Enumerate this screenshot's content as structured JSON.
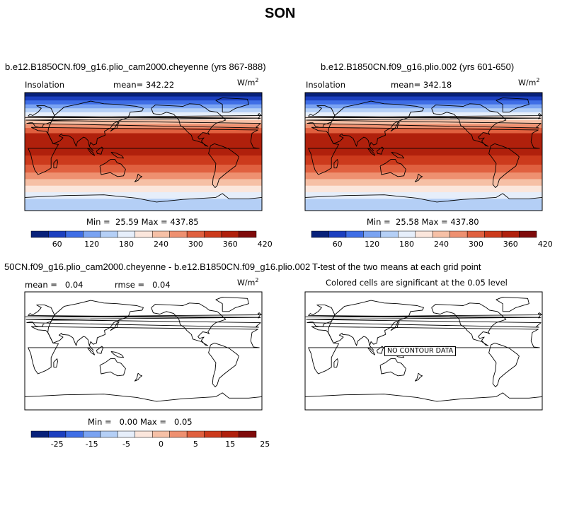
{
  "figure_title": "SON",
  "panels": [
    {
      "id": "top-left",
      "title": "b.e12.B1850CN.f09_g16.plio_cam2000.cheyenne (yrs 867-888)",
      "left_label": "Insolation",
      "stat_label": "mean=",
      "stat_value": "342.22",
      "unit_base": "W/m",
      "unit_sup": "2",
      "min_label": "Min =",
      "min_value": "25.59",
      "max_label": "Max =",
      "max_value": "437.85",
      "colorbar_ticks": [
        "60",
        "120",
        "180",
        "240",
        "300",
        "360",
        "420"
      ]
    },
    {
      "id": "top-right",
      "title": "b.e12.B1850CN.f09_g16.plio.002 (yrs 601-650)",
      "left_label": "Insolation",
      "stat_label": "mean=",
      "stat_value": "342.18",
      "unit_base": "W/m",
      "unit_sup": "2",
      "min_label": "Min =",
      "min_value": "25.58",
      "max_label": "Max =",
      "max_value": "437.80",
      "colorbar_ticks": [
        "60",
        "120",
        "180",
        "240",
        "300",
        "360",
        "420"
      ]
    },
    {
      "id": "bottom-left",
      "title": "50CN.f09_g16.plio_cam2000.cheyenne - b.e12.B1850CN.f09_g16.plio.002",
      "mean_label": "mean =",
      "mean_value": "0.04",
      "rmse_label": "rmse =",
      "rmse_value": "0.04",
      "unit_base": "W/m",
      "unit_sup": "2",
      "min_label": "Min =",
      "min_value": "0.00",
      "max_label": "Max =",
      "max_value": "0.05",
      "colorbar_ticks": [
        "-25",
        "-15",
        "-5",
        "0",
        "5",
        "15",
        "25"
      ]
    },
    {
      "id": "bottom-right",
      "title": "T-test of the two means at each grid point",
      "subtitle": "Colored cells are significant at the 0.05 level",
      "no_data_label": "NO CONTOUR DATA"
    }
  ],
  "colors": {
    "palette": [
      "#08217a",
      "#1c3fbf",
      "#3f6ee6",
      "#7aa3f2",
      "#b4cff6",
      "#e6eefa",
      "#fbe6dc",
      "#f6c0a6",
      "#ee9070",
      "#e0603f",
      "#cc3a1c",
      "#b0200c",
      "#7f0b0b"
    ],
    "coast": "#000000"
  }
}
